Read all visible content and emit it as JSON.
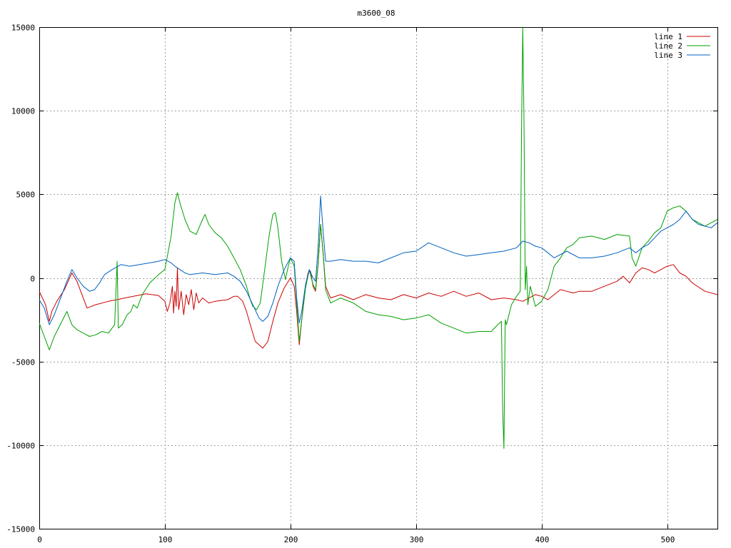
{
  "chart_data": {
    "type": "line",
    "title": "m3600_08",
    "xlabel": "",
    "ylabel": "",
    "xlim": [
      0,
      540
    ],
    "ylim": [
      -15000,
      15000
    ],
    "x_ticks": [
      0,
      100,
      200,
      300,
      400,
      500
    ],
    "y_ticks": [
      -15000,
      -10000,
      -5000,
      0,
      5000,
      10000,
      15000
    ],
    "grid": true,
    "legend_position": "top-right",
    "series": [
      {
        "name": "line 1",
        "color": "#cc0000",
        "points": [
          [
            0,
            -800
          ],
          [
            5,
            -1600
          ],
          [
            8,
            -2600
          ],
          [
            10,
            -2000
          ],
          [
            14,
            -1400
          ],
          [
            20,
            -700
          ],
          [
            26,
            300
          ],
          [
            30,
            -200
          ],
          [
            35,
            -1200
          ],
          [
            38,
            -1800
          ],
          [
            45,
            -1600
          ],
          [
            55,
            -1400
          ],
          [
            62,
            -1300
          ],
          [
            68,
            -1200
          ],
          [
            75,
            -1100
          ],
          [
            85,
            -950
          ],
          [
            95,
            -1050
          ],
          [
            100,
            -1400
          ],
          [
            102,
            -2000
          ],
          [
            104,
            -1500
          ],
          [
            106,
            -500
          ],
          [
            107,
            -2100
          ],
          [
            108,
            -800
          ],
          [
            109,
            -1700
          ],
          [
            110,
            600
          ],
          [
            111,
            -1900
          ],
          [
            113,
            -800
          ],
          [
            115,
            -2200
          ],
          [
            117,
            -1000
          ],
          [
            119,
            -1600
          ],
          [
            121,
            -700
          ],
          [
            123,
            -1900
          ],
          [
            125,
            -900
          ],
          [
            127,
            -1500
          ],
          [
            130,
            -1200
          ],
          [
            135,
            -1500
          ],
          [
            140,
            -1400
          ],
          [
            150,
            -1300
          ],
          [
            155,
            -1100
          ],
          [
            158,
            -1100
          ],
          [
            162,
            -1400
          ],
          [
            165,
            -2000
          ],
          [
            168,
            -2800
          ],
          [
            172,
            -3800
          ],
          [
            178,
            -4200
          ],
          [
            182,
            -3800
          ],
          [
            186,
            -2600
          ],
          [
            190,
            -1500
          ],
          [
            195,
            -600
          ],
          [
            200,
            0
          ],
          [
            203,
            -500
          ],
          [
            205,
            -2000
          ],
          [
            207,
            -4000
          ],
          [
            209,
            -2500
          ],
          [
            212,
            -500
          ],
          [
            214,
            300
          ],
          [
            216,
            400
          ],
          [
            218,
            -500
          ],
          [
            220,
            -800
          ],
          [
            222,
            800
          ],
          [
            224,
            3200
          ],
          [
            226,
            1500
          ],
          [
            228,
            -500
          ],
          [
            232,
            -1200
          ],
          [
            240,
            -1000
          ],
          [
            250,
            -1300
          ],
          [
            260,
            -1000
          ],
          [
            270,
            -1200
          ],
          [
            280,
            -1300
          ],
          [
            290,
            -1000
          ],
          [
            300,
            -1200
          ],
          [
            310,
            -900
          ],
          [
            320,
            -1100
          ],
          [
            330,
            -800
          ],
          [
            340,
            -1100
          ],
          [
            350,
            -900
          ],
          [
            360,
            -1300
          ],
          [
            370,
            -1200
          ],
          [
            380,
            -1300
          ],
          [
            385,
            -1400
          ],
          [
            390,
            -1200
          ],
          [
            395,
            -1000
          ],
          [
            400,
            -1100
          ],
          [
            405,
            -1300
          ],
          [
            410,
            -1000
          ],
          [
            415,
            -700
          ],
          [
            420,
            -800
          ],
          [
            425,
            -900
          ],
          [
            430,
            -800
          ],
          [
            440,
            -800
          ],
          [
            450,
            -500
          ],
          [
            460,
            -200
          ],
          [
            465,
            100
          ],
          [
            470,
            -300
          ],
          [
            475,
            300
          ],
          [
            480,
            600
          ],
          [
            485,
            500
          ],
          [
            490,
            300
          ],
          [
            495,
            500
          ],
          [
            500,
            700
          ],
          [
            505,
            800
          ],
          [
            510,
            300
          ],
          [
            515,
            100
          ],
          [
            520,
            -300
          ],
          [
            530,
            -800
          ],
          [
            540,
            -1000
          ]
        ]
      },
      {
        "name": "line 2",
        "color": "#00a000",
        "points": [
          [
            0,
            -2700
          ],
          [
            4,
            -3500
          ],
          [
            8,
            -4300
          ],
          [
            12,
            -3500
          ],
          [
            18,
            -2600
          ],
          [
            22,
            -2000
          ],
          [
            26,
            -2800
          ],
          [
            30,
            -3100
          ],
          [
            35,
            -3300
          ],
          [
            40,
            -3500
          ],
          [
            45,
            -3400
          ],
          [
            50,
            -3200
          ],
          [
            55,
            -3300
          ],
          [
            60,
            -2800
          ],
          [
            62,
            1000
          ],
          [
            63,
            -3000
          ],
          [
            66,
            -2800
          ],
          [
            70,
            -2200
          ],
          [
            73,
            -2000
          ],
          [
            75,
            -1600
          ],
          [
            78,
            -1800
          ],
          [
            82,
            -1000
          ],
          [
            88,
            -300
          ],
          [
            95,
            200
          ],
          [
            100,
            500
          ],
          [
            105,
            2500
          ],
          [
            108,
            4500
          ],
          [
            110,
            5100
          ],
          [
            112,
            4500
          ],
          [
            116,
            3500
          ],
          [
            120,
            2800
          ],
          [
            125,
            2600
          ],
          [
            130,
            3500
          ],
          [
            132,
            3800
          ],
          [
            135,
            3200
          ],
          [
            140,
            2700
          ],
          [
            145,
            2400
          ],
          [
            150,
            1900
          ],
          [
            155,
            1200
          ],
          [
            160,
            500
          ],
          [
            165,
            -500
          ],
          [
            168,
            -1300
          ],
          [
            170,
            -1700
          ],
          [
            173,
            -1900
          ],
          [
            176,
            -1500
          ],
          [
            180,
            800
          ],
          [
            183,
            2500
          ],
          [
            186,
            3800
          ],
          [
            188,
            3900
          ],
          [
            190,
            3000
          ],
          [
            193,
            1000
          ],
          [
            196,
            -100
          ],
          [
            198,
            600
          ],
          [
            200,
            1200
          ],
          [
            203,
            700
          ],
          [
            205,
            -1500
          ],
          [
            207,
            -3800
          ],
          [
            209,
            -2500
          ],
          [
            212,
            -600
          ],
          [
            215,
            500
          ],
          [
            218,
            -400
          ],
          [
            220,
            -700
          ],
          [
            222,
            800
          ],
          [
            224,
            3200
          ],
          [
            226,
            1500
          ],
          [
            228,
            -700
          ],
          [
            232,
            -1500
          ],
          [
            240,
            -1200
          ],
          [
            250,
            -1500
          ],
          [
            260,
            -2000
          ],
          [
            270,
            -2200
          ],
          [
            280,
            -2300
          ],
          [
            290,
            -2500
          ],
          [
            300,
            -2400
          ],
          [
            310,
            -2200
          ],
          [
            320,
            -2700
          ],
          [
            330,
            -3000
          ],
          [
            340,
            -3300
          ],
          [
            350,
            -3200
          ],
          [
            360,
            -3200
          ],
          [
            365,
            -2800
          ],
          [
            368,
            -2600
          ],
          [
            369,
            -8000
          ],
          [
            370,
            -10200
          ],
          [
            371,
            -2500
          ],
          [
            372,
            -2800
          ],
          [
            376,
            -1600
          ],
          [
            380,
            -1100
          ],
          [
            383,
            -800
          ],
          [
            384,
            9000
          ],
          [
            385,
            15000
          ],
          [
            386,
            9000
          ],
          [
            387,
            -700
          ],
          [
            388,
            700
          ],
          [
            389,
            -1600
          ],
          [
            391,
            -500
          ],
          [
            395,
            -1700
          ],
          [
            400,
            -1400
          ],
          [
            405,
            -700
          ],
          [
            410,
            700
          ],
          [
            415,
            1200
          ],
          [
            420,
            1800
          ],
          [
            425,
            2000
          ],
          [
            430,
            2400
          ],
          [
            440,
            2500
          ],
          [
            450,
            2300
          ],
          [
            460,
            2600
          ],
          [
            470,
            2500
          ],
          [
            472,
            1200
          ],
          [
            475,
            700
          ],
          [
            480,
            1800
          ],
          [
            485,
            2200
          ],
          [
            490,
            2700
          ],
          [
            495,
            3000
          ],
          [
            500,
            4000
          ],
          [
            505,
            4200
          ],
          [
            510,
            4300
          ],
          [
            515,
            4000
          ],
          [
            520,
            3500
          ],
          [
            525,
            3300
          ],
          [
            530,
            3100
          ],
          [
            535,
            3300
          ],
          [
            540,
            3500
          ]
        ]
      },
      {
        "name": "line 3",
        "color": "#0060c0",
        "points": [
          [
            0,
            -1300
          ],
          [
            4,
            -1800
          ],
          [
            8,
            -2800
          ],
          [
            12,
            -2200
          ],
          [
            18,
            -1000
          ],
          [
            22,
            -200
          ],
          [
            26,
            500
          ],
          [
            30,
            0
          ],
          [
            35,
            -500
          ],
          [
            40,
            -800
          ],
          [
            44,
            -700
          ],
          [
            48,
            -300
          ],
          [
            52,
            200
          ],
          [
            58,
            500
          ],
          [
            65,
            800
          ],
          [
            72,
            700
          ],
          [
            80,
            800
          ],
          [
            88,
            900
          ],
          [
            95,
            1000
          ],
          [
            100,
            1100
          ],
          [
            105,
            900
          ],
          [
            108,
            700
          ],
          [
            112,
            500
          ],
          [
            116,
            300
          ],
          [
            120,
            200
          ],
          [
            130,
            300
          ],
          [
            140,
            200
          ],
          [
            150,
            300
          ],
          [
            155,
            100
          ],
          [
            160,
            -200
          ],
          [
            165,
            -800
          ],
          [
            170,
            -1600
          ],
          [
            175,
            -2400
          ],
          [
            178,
            -2600
          ],
          [
            182,
            -2300
          ],
          [
            186,
            -1500
          ],
          [
            190,
            -500
          ],
          [
            195,
            500
          ],
          [
            200,
            1200
          ],
          [
            203,
            1000
          ],
          [
            205,
            -1200
          ],
          [
            207,
            -2700
          ],
          [
            209,
            -2000
          ],
          [
            212,
            -400
          ],
          [
            215,
            500
          ],
          [
            218,
            0
          ],
          [
            220,
            -200
          ],
          [
            222,
            1800
          ],
          [
            224,
            4900
          ],
          [
            226,
            2800
          ],
          [
            228,
            1000
          ],
          [
            232,
            1000
          ],
          [
            240,
            1100
          ],
          [
            250,
            1000
          ],
          [
            260,
            1000
          ],
          [
            270,
            900
          ],
          [
            280,
            1200
          ],
          [
            290,
            1500
          ],
          [
            300,
            1600
          ],
          [
            310,
            2100
          ],
          [
            320,
            1800
          ],
          [
            330,
            1500
          ],
          [
            340,
            1300
          ],
          [
            350,
            1400
          ],
          [
            360,
            1500
          ],
          [
            370,
            1600
          ],
          [
            380,
            1800
          ],
          [
            385,
            2200
          ],
          [
            390,
            2100
          ],
          [
            395,
            1900
          ],
          [
            400,
            1800
          ],
          [
            405,
            1500
          ],
          [
            410,
            1200
          ],
          [
            420,
            1600
          ],
          [
            430,
            1200
          ],
          [
            440,
            1200
          ],
          [
            450,
            1300
          ],
          [
            460,
            1500
          ],
          [
            470,
            1800
          ],
          [
            475,
            1500
          ],
          [
            480,
            1800
          ],
          [
            485,
            2000
          ],
          [
            490,
            2400
          ],
          [
            495,
            2800
          ],
          [
            500,
            3000
          ],
          [
            505,
            3200
          ],
          [
            510,
            3500
          ],
          [
            515,
            4000
          ],
          [
            520,
            3500
          ],
          [
            525,
            3200
          ],
          [
            530,
            3100
          ],
          [
            535,
            3000
          ],
          [
            540,
            3300
          ]
        ]
      }
    ]
  }
}
